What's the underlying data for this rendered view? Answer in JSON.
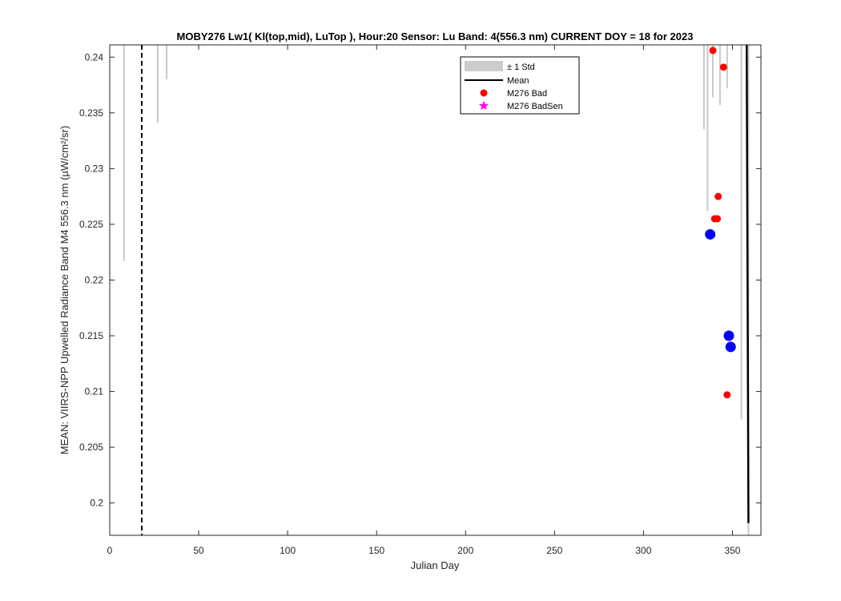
{
  "chart_data": {
    "type": "scatter",
    "title": "MOBY276   Lw1( Kl(top,mid), LuTop ),   Hour:20 Sensor: Lu Band: 4(556.3 nm)   CURRENT DOY = 18 for 2023",
    "xlabel": "Julian Day",
    "ylabel": "MEAN: VIIRS-NPP Upwelled Radiance Band M4 556.3 nm (µW/cm²/sr)",
    "xlim": [
      0,
      366
    ],
    "ylim": [
      0.1971,
      0.2411
    ],
    "xticks": [
      0,
      50,
      100,
      150,
      200,
      250,
      300,
      350
    ],
    "xtick_labels": [
      "0",
      "50",
      "100",
      "150",
      "200",
      "250",
      "300",
      "350"
    ],
    "yticks": [
      0.2,
      0.205,
      0.21,
      0.215,
      0.22,
      0.225,
      0.23,
      0.235,
      0.24
    ],
    "ytick_labels": [
      "0.2",
      "0.205",
      "0.21",
      "0.215",
      "0.22",
      "0.225",
      "0.23",
      "0.235",
      "0.24"
    ],
    "current_doy": 18,
    "legend_position": "top-right",
    "legend": [
      {
        "label": "± 1 Std",
        "kind": "patch",
        "color": "#cccccc"
      },
      {
        "label": "Mean",
        "kind": "line",
        "color": "#000000"
      },
      {
        "label": "M276 Bad",
        "kind": "dot",
        "color": "#ff0000"
      },
      {
        "label": "M276 BadSen",
        "kind": "star",
        "color": "#ff00ff"
      }
    ],
    "std_spikes": [
      {
        "x": 8,
        "from": 0.2411,
        "to": 0.2217
      },
      {
        "x": 27,
        "from": 0.2411,
        "to": 0.2341
      },
      {
        "x": 32,
        "from": 0.2411,
        "to": 0.238
      },
      {
        "x": 334,
        "from": 0.2411,
        "to": 0.2335
      },
      {
        "x": 336,
        "from": 0.2411,
        "to": 0.2262
      },
      {
        "x": 339,
        "from": 0.2411,
        "to": 0.2364
      },
      {
        "x": 343,
        "from": 0.2411,
        "to": 0.2357
      },
      {
        "x": 347,
        "from": 0.2411,
        "to": 0.2372
      },
      {
        "x": 355,
        "from": 0.2411,
        "to": 0.2075
      },
      {
        "x": 359,
        "from": 0.2411,
        "to": 0.1971
      }
    ],
    "mean_line": [
      [
        358,
        0.2411
      ],
      [
        359,
        0.1982
      ]
    ],
    "series": [
      {
        "name": "M276 Bad",
        "color": "#ff0000",
        "size": 4.5,
        "points": [
          [
            339,
            0.2406
          ],
          [
            345,
            0.2391
          ],
          [
            342,
            0.2275
          ],
          [
            340,
            0.2255
          ],
          [
            341.5,
            0.2255
          ],
          [
            347,
            0.2097
          ]
        ]
      },
      {
        "name": "",
        "color": "#0000ff",
        "size": 6.5,
        "points": [
          [
            337.5,
            0.2241
          ],
          [
            348,
            0.215
          ],
          [
            349,
            0.214
          ]
        ]
      }
    ]
  }
}
